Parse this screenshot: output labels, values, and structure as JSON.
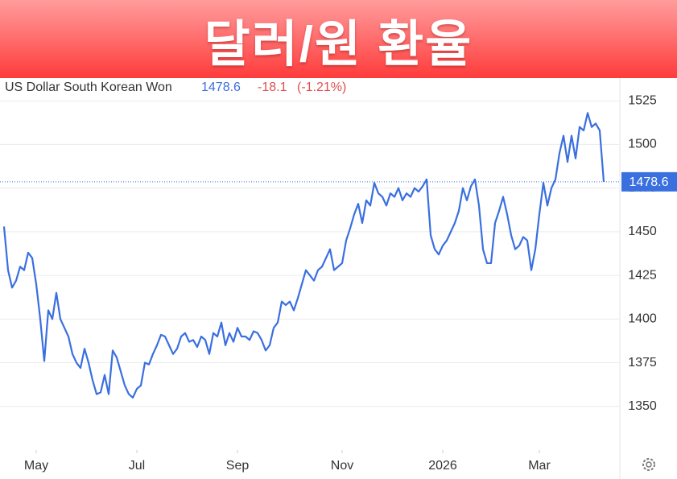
{
  "header": {
    "title": "달러/원 환율"
  },
  "chart_data": {
    "type": "line",
    "title": "US Dollar South Korean Won",
    "change": "-18.1",
    "change_percent": "(-1.21%)",
    "series": [
      {
        "name": "US Dollar South Korean Won",
        "color": "#3a6fe0",
        "values": [
          1453,
          1428,
          1418,
          1422,
          1430,
          1428,
          1438,
          1435,
          1420,
          1400,
          1376,
          1405,
          1400,
          1415,
          1400,
          1395,
          1390,
          1380,
          1375,
          1372,
          1383,
          1375,
          1365,
          1357,
          1358,
          1368,
          1357,
          1382,
          1378,
          1370,
          1362,
          1357,
          1355,
          1360,
          1362,
          1375,
          1374,
          1380,
          1385,
          1391,
          1390,
          1385,
          1380,
          1383,
          1390,
          1392,
          1387,
          1388,
          1384,
          1390,
          1388,
          1380,
          1392,
          1390,
          1398,
          1385,
          1392,
          1387,
          1395,
          1390,
          1390,
          1388,
          1393,
          1392,
          1388,
          1382,
          1385,
          1395,
          1398,
          1410,
          1408,
          1410,
          1405,
          1412,
          1420,
          1428,
          1425,
          1422,
          1428,
          1430,
          1435,
          1440,
          1428,
          1430,
          1432,
          1445,
          1452,
          1460,
          1466,
          1455,
          1468,
          1465,
          1478,
          1472,
          1470,
          1465,
          1472,
          1470,
          1475,
          1468,
          1472,
          1470,
          1475,
          1473,
          1476,
          1480,
          1448,
          1440,
          1437,
          1442,
          1445,
          1450,
          1455,
          1462,
          1475,
          1468,
          1476,
          1480,
          1465,
          1440,
          1432,
          1432,
          1455,
          1462,
          1470,
          1460,
          1448,
          1440,
          1442,
          1447,
          1445,
          1428,
          1440,
          1460,
          1478,
          1465,
          1475,
          1480,
          1495,
          1505,
          1490,
          1505,
          1492,
          1510,
          1508,
          1518,
          1510,
          1512,
          1508,
          1478.6
        ]
      }
    ],
    "xlim": [
      0,
      149
    ],
    "xticks": [
      {
        "value": 8,
        "label": "May"
      },
      {
        "value": 33,
        "label": "Jul"
      },
      {
        "value": 58,
        "label": "Sep"
      },
      {
        "value": 84,
        "label": "Nov"
      },
      {
        "value": 109,
        "label": "2026"
      },
      {
        "value": 133,
        "label": "Mar"
      }
    ],
    "ylim": [
      1325,
      1538
    ],
    "yticks": [
      1350,
      1375,
      1400,
      1425,
      1450,
      1475,
      1500,
      1525
    ],
    "grid": true
  }
}
